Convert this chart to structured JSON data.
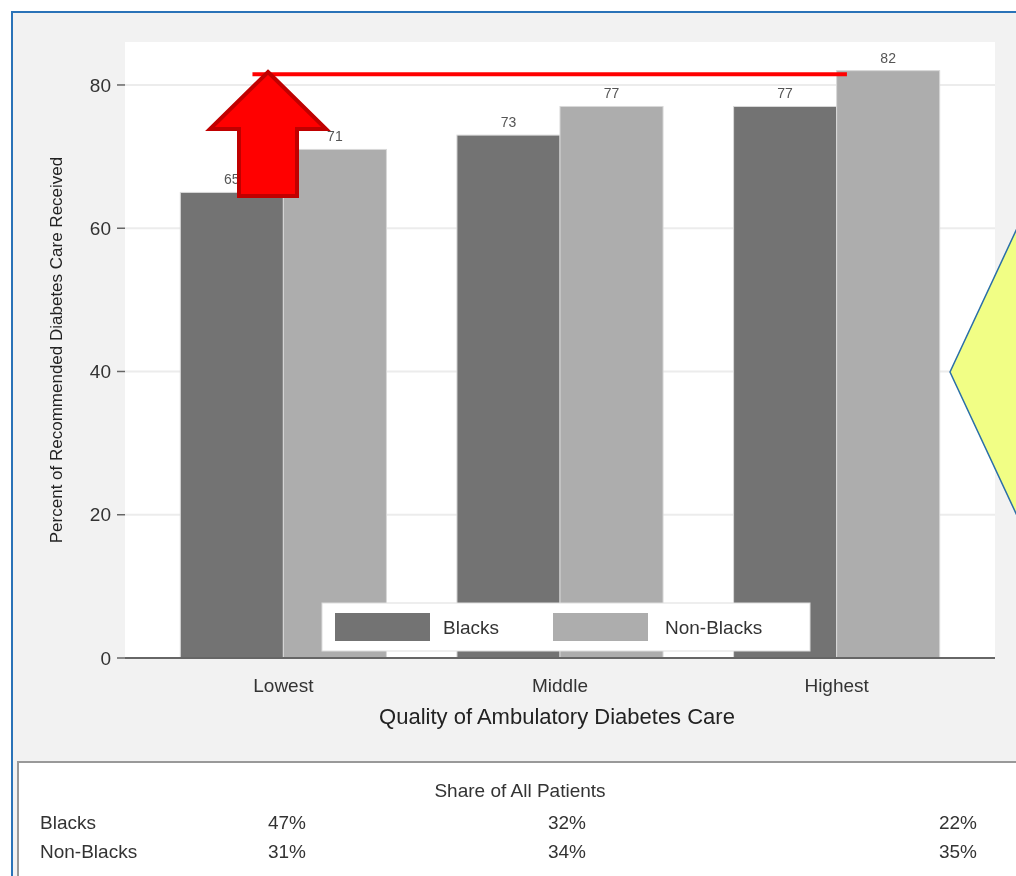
{
  "chart_data": [
    {
      "type": "bar",
      "xlabel": "Quality of Ambulatory Diabetes Care",
      "ylabel": "Percent of Recommended Diabetes Care Received",
      "categories": [
        "Lowest",
        "Middle",
        "Highest"
      ],
      "series": [
        {
          "name": "Blacks",
          "color": "#737373",
          "values": [
            65,
            73,
            77
          ]
        },
        {
          "name": "Non-Blacks",
          "color": "#adadad",
          "values": [
            71,
            77,
            82
          ]
        }
      ],
      "ylim": [
        0,
        86
      ],
      "yticks": [
        0,
        20,
        40,
        60,
        80
      ],
      "grid": "y",
      "legend": "bottom",
      "data_labels": true,
      "ref_lines": [
        {
          "axis": "y",
          "value": 81.5,
          "color": "#ff0000"
        }
      ]
    },
    {
      "type": "other",
      "title": "Share of All Patients",
      "annotations": [
        "Blacks",
        "47%",
        "32%",
        "22%",
        "Non-Blacks",
        "31%",
        "34%",
        "35%"
      ]
    }
  ]
}
